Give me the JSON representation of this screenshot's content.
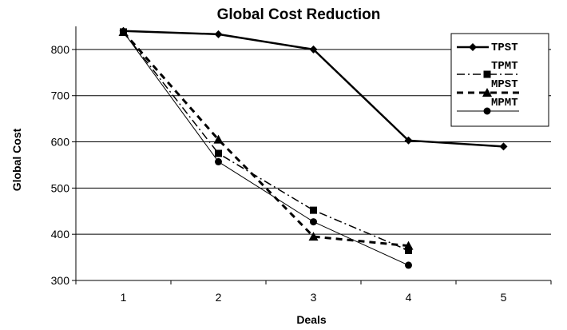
{
  "chart_data": {
    "type": "line",
    "title": "Global Cost Reduction",
    "xlabel": "Deals",
    "ylabel": "Global Cost",
    "x": [
      1,
      2,
      3,
      4,
      5
    ],
    "xlim": [
      0.5,
      5.5
    ],
    "ylim": [
      300,
      850
    ],
    "yticks": [
      300,
      400,
      500,
      600,
      700,
      800
    ],
    "grid": "horizontal",
    "legend": "top-right",
    "series": [
      {
        "name": "TPST",
        "marker": "diamond",
        "line": "solid-thick",
        "color": "#000000",
        "x": [
          1,
          2,
          3,
          4,
          5
        ],
        "values": [
          840,
          833,
          800,
          603,
          590
        ]
      },
      {
        "name": "TPMT",
        "marker": "square",
        "line": "dash-dot",
        "color": "#000000",
        "x": [
          1,
          2,
          3,
          4
        ],
        "values": [
          838,
          575,
          452,
          365
        ]
      },
      {
        "name": "MPST",
        "marker": "triangle",
        "line": "dashed-thick",
        "color": "#000000",
        "x": [
          1,
          2,
          3,
          4
        ],
        "values": [
          838,
          605,
          395,
          375
        ]
      },
      {
        "name": "MPMT",
        "marker": "circle",
        "line": "solid-thin",
        "color": "#000000",
        "x": [
          1,
          2,
          3,
          4
        ],
        "values": [
          838,
          557,
          427,
          333
        ]
      }
    ]
  }
}
